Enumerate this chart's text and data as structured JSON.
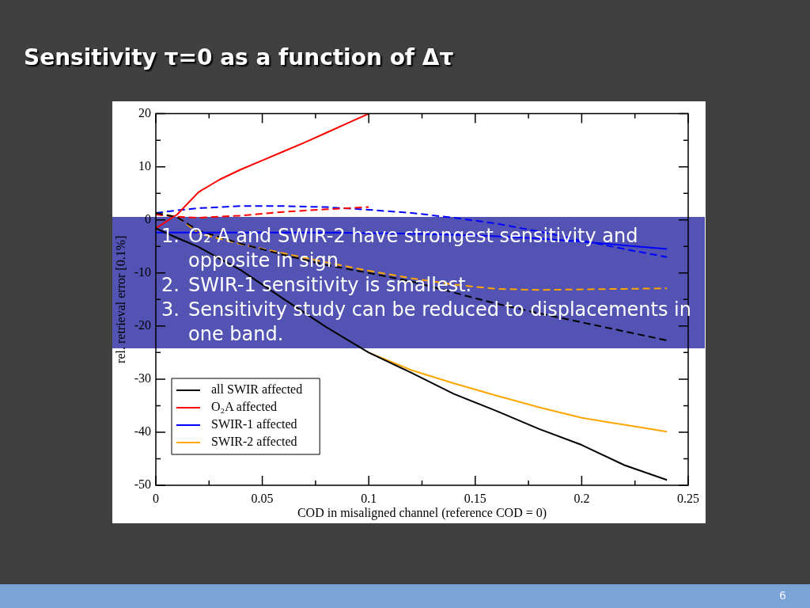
{
  "chart_data": {
    "type": "line",
    "title": "Sensitivity τ=0 as a function of Δτ",
    "xlabel": "COD in misaligned channel (reference COD = 0)",
    "ylabel": "rel. retrieval error [0.1%]",
    "annotations": [
      "1. O₂ A and SWIR-2 have strongest sensitivity and opposite in sign",
      "2. SWIR-1 sensitivity is smallest.",
      "3. Sensitivity study can be reduced to displacements in one band.",
      "6"
    ],
    "x": [
      0,
      0.01,
      0.02,
      0.04,
      0.06,
      0.08,
      0.1,
      0.12,
      0.14,
      0.16,
      0.18,
      0.2,
      0.22,
      0.24
    ],
    "series": [
      {
        "name": "all SWIR affected",
        "color": "#000000",
        "line_style": "solid",
        "values": [
          -1.6,
          -3.4,
          -5.1,
          -9.5,
          -14.9,
          -20.2,
          -25.0,
          -28.8,
          -32.8,
          -36.0,
          -39.4,
          -42.4,
          -46.2,
          -49.0
        ]
      },
      {
        "name": "O₂A affected",
        "color": "#ff0000",
        "line_style": "solid",
        "x": [
          0,
          0.01,
          0.02,
          0.03,
          0.04,
          0.05,
          0.06,
          0.07,
          0.08,
          0.09,
          0.1
        ],
        "values": [
          -1.6,
          1.0,
          5.2,
          7.6,
          9.5,
          11.2,
          12.9,
          14.6,
          16.4,
          18.2,
          20.0
        ]
      },
      {
        "name": "SWIR-1 affected",
        "color": "#0000ff",
        "line_style": "solid",
        "values": [
          -2.4,
          -2.4,
          -2.4,
          -2.4,
          -2.4,
          -2.4,
          -2.5,
          -2.6,
          -2.8,
          -3.1,
          -3.5,
          -4.1,
          -4.8,
          -5.5
        ]
      },
      {
        "name": "SWIR-2 affected",
        "color": "#ffa500",
        "line_style": "solid",
        "values": [
          null,
          null,
          null,
          null,
          null,
          null,
          -25.0,
          -28.3,
          -30.8,
          -33.1,
          -35.3,
          -37.3,
          -38.6,
          -39.9
        ]
      },
      {
        "color": "#000000",
        "line_style": "dashed",
        "values": [
          1.3,
          0.5,
          -2.0,
          -4.5,
          -6.6,
          -8.5,
          -10.0,
          -11.6,
          -13.7,
          -15.8,
          -17.6,
          -19.3,
          -21.0,
          -22.7
        ]
      },
      {
        "color": "#ff0000",
        "line_style": "dashed",
        "x": [
          0,
          0.01,
          0.02,
          0.04,
          0.06,
          0.08,
          0.1
        ],
        "values": [
          1.0,
          0.6,
          0.4,
          0.8,
          1.5,
          2.0,
          2.4
        ]
      },
      {
        "color": "#0000ff",
        "line_style": "dashed",
        "values": [
          1.3,
          1.8,
          2.2,
          2.6,
          2.6,
          2.4,
          1.9,
          1.3,
          0.4,
          -0.7,
          -2.2,
          -3.9,
          -5.5,
          -7.0
        ]
      },
      {
        "color": "#ffa500",
        "line_style": "dashed",
        "values": [
          1.3,
          0.6,
          -2.5,
          -4.6,
          -6.3,
          -8.0,
          -9.6,
          -11.0,
          -12.2,
          -13.0,
          -13.2,
          -13.1,
          -13.0,
          -12.9
        ]
      }
    ],
    "xlim": [
      0,
      0.25
    ],
    "xticks": [
      0,
      {
        "value": 0.025,
        "label": null
      },
      0.05,
      {
        "value": 0.075,
        "label": null
      },
      0.1,
      {
        "value": 0.125,
        "label": null
      },
      0.15,
      {
        "value": 0.175,
        "label": null
      },
      0.2,
      {
        "value": 0.225,
        "label": null
      },
      0.25
    ],
    "ylim": [
      -50,
      20
    ],
    "yticks": [
      -50,
      {
        "value": -45,
        "label": null
      },
      -40,
      {
        "value": -35,
        "label": null
      },
      -30,
      {
        "value": -25,
        "label": null
      },
      -20,
      {
        "value": -15,
        "label": null
      },
      -10,
      {
        "value": -5,
        "label": null
      },
      0,
      {
        "value": 5,
        "label": null
      },
      10,
      {
        "value": 15,
        "label": null
      },
      20
    ],
    "legend": "bottom left",
    "marker": "none"
  }
}
